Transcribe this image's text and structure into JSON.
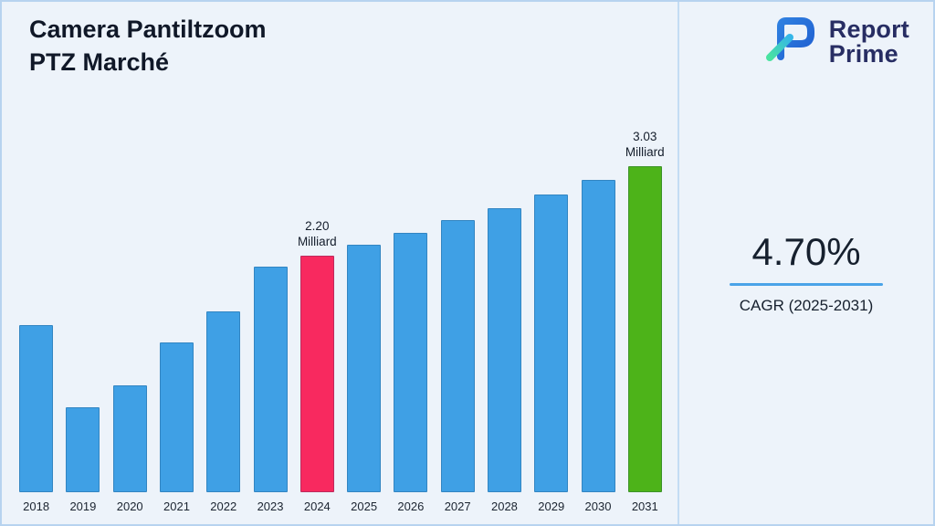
{
  "frame": {
    "background": "#edf3fa",
    "border_color": "#b7d3ef",
    "divider_color": "#c3dcf4"
  },
  "header": {
    "title_line1": "Camera Pantiltzoom",
    "title_line2": "PTZ Marché"
  },
  "logo": {
    "text_top": "Report",
    "text_bottom": "Prime",
    "text_color": "#272d63",
    "mark_blue": "#2f7fe0",
    "mark_green": "#3fcf8e"
  },
  "stats": {
    "value": "4.70%",
    "underline_color": "#4aa3e8",
    "label": "CAGR (2025-2031)"
  },
  "chart_data": {
    "type": "bar",
    "title": "Camera Pantiltzoom PTZ Marché",
    "unit": "Milliard",
    "categories": [
      "2018",
      "2019",
      "2020",
      "2021",
      "2022",
      "2023",
      "2024",
      "2025",
      "2026",
      "2027",
      "2028",
      "2029",
      "2030",
      "2031"
    ],
    "values": [
      1.55,
      0.79,
      0.99,
      1.39,
      1.68,
      2.1,
      2.2,
      2.3,
      2.41,
      2.53,
      2.64,
      2.77,
      2.9,
      3.03
    ],
    "ylim": [
      0,
      3.2
    ],
    "grid": false,
    "legend": "none",
    "bar_default_color": "#3fa0e5",
    "highlighted_bars": [
      {
        "category": "2024",
        "color": "#f8295f"
      },
      {
        "category": "2031",
        "color": "#4db319"
      }
    ],
    "annotations": [
      {
        "category": "2024",
        "lines": [
          "2.20",
          "Milliard"
        ]
      },
      {
        "category": "2031",
        "lines": [
          "3.03",
          "Milliard"
        ]
      }
    ]
  }
}
